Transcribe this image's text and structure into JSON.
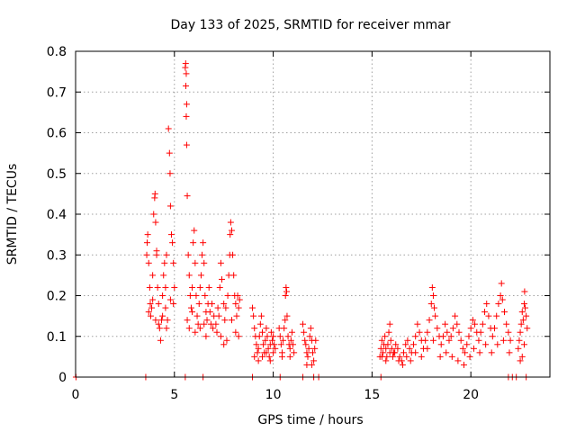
{
  "chart_data": {
    "type": "scatter",
    "title": "Day 133 of 2025, SRMTID for receiver mmar",
    "xlabel": "GPS time / hours",
    "ylabel": "SRMTID / TECUs",
    "xlim": [
      0,
      24
    ],
    "ylim": [
      0,
      0.8
    ],
    "xticks": [
      0,
      5,
      10,
      15,
      20
    ],
    "yticks": [
      0,
      0.1,
      0.2,
      0.3,
      0.4,
      0.5,
      0.6,
      0.7,
      0.8
    ],
    "xtick_labels": [
      "0",
      "5",
      "10",
      "15",
      "20"
    ],
    "ytick_labels": [
      "0",
      "0.1",
      "0.2",
      "0.3",
      "0.4",
      "0.5",
      "0.6",
      "0.7",
      "0.8"
    ],
    "grid": true,
    "marker": "+",
    "color": "#ff0000",
    "series": [
      {
        "name": "SRMTID",
        "points": [
          [
            0.02,
            0.0
          ],
          [
            3.55,
            0.0
          ],
          [
            5.55,
            0.0
          ],
          [
            6.45,
            0.0
          ],
          [
            8.95,
            0.0
          ],
          [
            10.35,
            0.0
          ],
          [
            11.5,
            0.0
          ],
          [
            12.05,
            0.0
          ],
          [
            12.3,
            0.0
          ],
          [
            15.45,
            0.0
          ],
          [
            21.9,
            0.0
          ],
          [
            22.1,
            0.0
          ],
          [
            22.3,
            0.0
          ],
          [
            22.8,
            0.0
          ],
          [
            3.6,
            0.3
          ],
          [
            3.62,
            0.33
          ],
          [
            3.65,
            0.35
          ],
          [
            3.7,
            0.28
          ],
          [
            3.75,
            0.22
          ],
          [
            3.78,
            0.18
          ],
          [
            3.8,
            0.15
          ],
          [
            3.85,
            0.17
          ],
          [
            3.9,
            0.25
          ],
          [
            3.95,
            0.4
          ],
          [
            4.0,
            0.44
          ],
          [
            4.02,
            0.45
          ],
          [
            4.05,
            0.38
          ],
          [
            4.1,
            0.3
          ],
          [
            4.15,
            0.22
          ],
          [
            4.2,
            0.18
          ],
          [
            4.25,
            0.12
          ],
          [
            4.3,
            0.09
          ],
          [
            4.35,
            0.14
          ],
          [
            4.4,
            0.2
          ],
          [
            4.45,
            0.25
          ],
          [
            4.5,
            0.28
          ],
          [
            4.55,
            0.22
          ],
          [
            4.6,
            0.3
          ],
          [
            4.65,
            0.14
          ],
          [
            4.7,
            0.61
          ],
          [
            4.75,
            0.55
          ],
          [
            4.78,
            0.5
          ],
          [
            4.8,
            0.42
          ],
          [
            4.85,
            0.35
          ],
          [
            4.9,
            0.33
          ],
          [
            4.95,
            0.28
          ],
          [
            5.0,
            0.22
          ],
          [
            3.7,
            0.16
          ],
          [
            3.9,
            0.19
          ],
          [
            4.05,
            0.14
          ],
          [
            4.2,
            0.13
          ],
          [
            4.4,
            0.15
          ],
          [
            4.6,
            0.12
          ],
          [
            4.8,
            0.19
          ],
          [
            4.95,
            0.18
          ],
          [
            4.1,
            0.31
          ],
          [
            4.55,
            0.17
          ],
          [
            5.55,
            0.76
          ],
          [
            5.57,
            0.77
          ],
          [
            5.6,
            0.745
          ],
          [
            5.58,
            0.715
          ],
          [
            5.62,
            0.67
          ],
          [
            5.6,
            0.64
          ],
          [
            5.62,
            0.57
          ],
          [
            5.65,
            0.445
          ],
          [
            5.7,
            0.3
          ],
          [
            5.75,
            0.25
          ],
          [
            5.8,
            0.2
          ],
          [
            5.85,
            0.17
          ],
          [
            5.9,
            0.22
          ],
          [
            5.95,
            0.33
          ],
          [
            6.0,
            0.36
          ],
          [
            6.05,
            0.28
          ],
          [
            6.1,
            0.2
          ],
          [
            6.15,
            0.15
          ],
          [
            6.2,
            0.13
          ],
          [
            6.25,
            0.18
          ],
          [
            6.3,
            0.22
          ],
          [
            6.35,
            0.25
          ],
          [
            6.4,
            0.3
          ],
          [
            6.45,
            0.33
          ],
          [
            6.5,
            0.28
          ],
          [
            6.55,
            0.2
          ],
          [
            6.6,
            0.16
          ],
          [
            6.65,
            0.14
          ],
          [
            6.7,
            0.18
          ],
          [
            6.75,
            0.22
          ],
          [
            5.65,
            0.14
          ],
          [
            5.75,
            0.12
          ],
          [
            5.9,
            0.16
          ],
          [
            6.05,
            0.11
          ],
          [
            6.3,
            0.12
          ],
          [
            6.5,
            0.13
          ],
          [
            6.6,
            0.1
          ],
          [
            6.8,
            0.16
          ],
          [
            6.9,
            0.18
          ],
          [
            7.0,
            0.15
          ],
          [
            7.1,
            0.13
          ],
          [
            7.2,
            0.17
          ],
          [
            7.3,
            0.22
          ],
          [
            7.35,
            0.28
          ],
          [
            7.4,
            0.24
          ],
          [
            7.5,
            0.18
          ],
          [
            7.55,
            0.14
          ],
          [
            7.6,
            0.17
          ],
          [
            7.7,
            0.2
          ],
          [
            7.75,
            0.25
          ],
          [
            7.8,
            0.3
          ],
          [
            7.82,
            0.35
          ],
          [
            7.85,
            0.38
          ],
          [
            7.9,
            0.36
          ],
          [
            7.95,
            0.3
          ],
          [
            8.0,
            0.25
          ],
          [
            8.05,
            0.2
          ],
          [
            8.1,
            0.18
          ],
          [
            8.15,
            0.15
          ],
          [
            8.2,
            0.2
          ],
          [
            8.25,
            0.17
          ],
          [
            8.3,
            0.19
          ],
          [
            6.95,
            0.12
          ],
          [
            7.15,
            0.11
          ],
          [
            7.35,
            0.1
          ],
          [
            7.5,
            0.08
          ],
          [
            7.65,
            0.09
          ],
          [
            7.9,
            0.14
          ],
          [
            8.1,
            0.11
          ],
          [
            8.25,
            0.1
          ],
          [
            7.25,
            0.15
          ],
          [
            6.85,
            0.13
          ],
          [
            8.95,
            0.17
          ],
          [
            9.0,
            0.15
          ],
          [
            9.05,
            0.12
          ],
          [
            9.1,
            0.1
          ],
          [
            9.15,
            0.08
          ],
          [
            9.2,
            0.06
          ],
          [
            9.25,
            0.07
          ],
          [
            9.3,
            0.1
          ],
          [
            9.35,
            0.13
          ],
          [
            9.4,
            0.15
          ],
          [
            9.45,
            0.11
          ],
          [
            9.5,
            0.08
          ],
          [
            9.55,
            0.06
          ],
          [
            9.6,
            0.09
          ],
          [
            9.65,
            0.12
          ],
          [
            9.7,
            0.1
          ],
          [
            9.75,
            0.07
          ],
          [
            9.8,
            0.05
          ],
          [
            9.85,
            0.08
          ],
          [
            9.9,
            0.11
          ],
          [
            9.95,
            0.09
          ],
          [
            10.0,
            0.06
          ],
          [
            10.05,
            0.08
          ],
          [
            10.1,
            0.07
          ],
          [
            9.05,
            0.05
          ],
          [
            9.25,
            0.04
          ],
          [
            9.45,
            0.05
          ],
          [
            9.65,
            0.06
          ],
          [
            9.85,
            0.04
          ],
          [
            10.0,
            0.1
          ],
          [
            10.3,
            0.12
          ],
          [
            10.35,
            0.1
          ],
          [
            10.4,
            0.08
          ],
          [
            10.45,
            0.06
          ],
          [
            10.5,
            0.09
          ],
          [
            10.55,
            0.12
          ],
          [
            10.6,
            0.14
          ],
          [
            10.62,
            0.2
          ],
          [
            10.65,
            0.22
          ],
          [
            10.68,
            0.21
          ],
          [
            10.7,
            0.15
          ],
          [
            10.75,
            0.1
          ],
          [
            10.8,
            0.08
          ],
          [
            10.85,
            0.07
          ],
          [
            10.9,
            0.09
          ],
          [
            10.95,
            0.11
          ],
          [
            11.0,
            0.08
          ],
          [
            11.05,
            0.06
          ],
          [
            10.45,
            0.05
          ],
          [
            10.85,
            0.05
          ],
          [
            11.5,
            0.13
          ],
          [
            11.55,
            0.11
          ],
          [
            11.6,
            0.09
          ],
          [
            11.65,
            0.08
          ],
          [
            11.7,
            0.06
          ],
          [
            11.75,
            0.05
          ],
          [
            11.8,
            0.07
          ],
          [
            11.85,
            0.1
          ],
          [
            11.9,
            0.12
          ],
          [
            11.95,
            0.09
          ],
          [
            12.0,
            0.06
          ],
          [
            12.05,
            0.04
          ],
          [
            12.1,
            0.07
          ],
          [
            12.15,
            0.09
          ],
          [
            11.7,
            0.03
          ],
          [
            11.95,
            0.03
          ],
          [
            15.4,
            0.05
          ],
          [
            15.45,
            0.07
          ],
          [
            15.5,
            0.09
          ],
          [
            15.55,
            0.06
          ],
          [
            15.6,
            0.08
          ],
          [
            15.65,
            0.1
          ],
          [
            15.7,
            0.07
          ],
          [
            15.75,
            0.05
          ],
          [
            15.8,
            0.08
          ],
          [
            15.85,
            0.11
          ],
          [
            15.9,
            0.13
          ],
          [
            15.95,
            0.09
          ],
          [
            16.0,
            0.07
          ],
          [
            16.05,
            0.05
          ],
          [
            16.1,
            0.06
          ],
          [
            16.2,
            0.08
          ],
          [
            16.3,
            0.07
          ],
          [
            16.4,
            0.05
          ],
          [
            16.5,
            0.04
          ],
          [
            16.6,
            0.06
          ],
          [
            16.7,
            0.08
          ],
          [
            16.8,
            0.09
          ],
          [
            16.9,
            0.07
          ],
          [
            17.0,
            0.06
          ],
          [
            15.5,
            0.05
          ],
          [
            15.7,
            0.04
          ],
          [
            15.9,
            0.06
          ],
          [
            16.15,
            0.06
          ],
          [
            16.35,
            0.04
          ],
          [
            16.55,
            0.03
          ],
          [
            16.75,
            0.05
          ],
          [
            16.95,
            0.04
          ],
          [
            17.1,
            0.08
          ],
          [
            17.2,
            0.1
          ],
          [
            17.3,
            0.13
          ],
          [
            17.4,
            0.11
          ],
          [
            17.5,
            0.09
          ],
          [
            17.6,
            0.07
          ],
          [
            17.7,
            0.09
          ],
          [
            17.8,
            0.11
          ],
          [
            17.9,
            0.14
          ],
          [
            18.0,
            0.18
          ],
          [
            18.05,
            0.22
          ],
          [
            18.1,
            0.2
          ],
          [
            18.15,
            0.17
          ],
          [
            18.2,
            0.15
          ],
          [
            18.3,
            0.12
          ],
          [
            18.4,
            0.1
          ],
          [
            18.5,
            0.08
          ],
          [
            18.6,
            0.1
          ],
          [
            18.7,
            0.13
          ],
          [
            18.8,
            0.11
          ],
          [
            18.9,
            0.09
          ],
          [
            19.0,
            0.1
          ],
          [
            19.1,
            0.12
          ],
          [
            19.2,
            0.15
          ],
          [
            19.3,
            0.13
          ],
          [
            19.4,
            0.11
          ],
          [
            19.5,
            0.09
          ],
          [
            19.6,
            0.07
          ],
          [
            19.7,
            0.06
          ],
          [
            19.8,
            0.08
          ],
          [
            19.9,
            0.1
          ],
          [
            17.2,
            0.06
          ],
          [
            17.5,
            0.05
          ],
          [
            17.8,
            0.07
          ],
          [
            18.1,
            0.09
          ],
          [
            18.45,
            0.05
          ],
          [
            18.75,
            0.06
          ],
          [
            19.05,
            0.05
          ],
          [
            19.35,
            0.04
          ],
          [
            19.65,
            0.03
          ],
          [
            19.95,
            0.05
          ],
          [
            20.0,
            0.12
          ],
          [
            20.1,
            0.14
          ],
          [
            20.2,
            0.13
          ],
          [
            20.3,
            0.11
          ],
          [
            20.4,
            0.09
          ],
          [
            20.5,
            0.11
          ],
          [
            20.6,
            0.13
          ],
          [
            20.7,
            0.16
          ],
          [
            20.8,
            0.18
          ],
          [
            20.9,
            0.15
          ],
          [
            21.0,
            0.12
          ],
          [
            21.1,
            0.1
          ],
          [
            21.2,
            0.12
          ],
          [
            21.3,
            0.15
          ],
          [
            21.4,
            0.18
          ],
          [
            21.5,
            0.2
          ],
          [
            21.55,
            0.23
          ],
          [
            21.6,
            0.19
          ],
          [
            21.7,
            0.16
          ],
          [
            21.8,
            0.13
          ],
          [
            21.9,
            0.11
          ],
          [
            22.0,
            0.09
          ],
          [
            20.15,
            0.07
          ],
          [
            20.45,
            0.06
          ],
          [
            20.75,
            0.08
          ],
          [
            21.05,
            0.06
          ],
          [
            21.35,
            0.08
          ],
          [
            21.65,
            0.09
          ],
          [
            21.95,
            0.06
          ],
          [
            22.4,
            0.07
          ],
          [
            22.45,
            0.09
          ],
          [
            22.5,
            0.11
          ],
          [
            22.55,
            0.13
          ],
          [
            22.6,
            0.16
          ],
          [
            22.65,
            0.14
          ],
          [
            22.7,
            0.18
          ],
          [
            22.72,
            0.21
          ],
          [
            22.75,
            0.17
          ],
          [
            22.8,
            0.15
          ],
          [
            22.85,
            0.12
          ],
          [
            22.5,
            0.04
          ],
          [
            22.6,
            0.05
          ],
          [
            22.7,
            0.08
          ]
        ]
      }
    ]
  }
}
